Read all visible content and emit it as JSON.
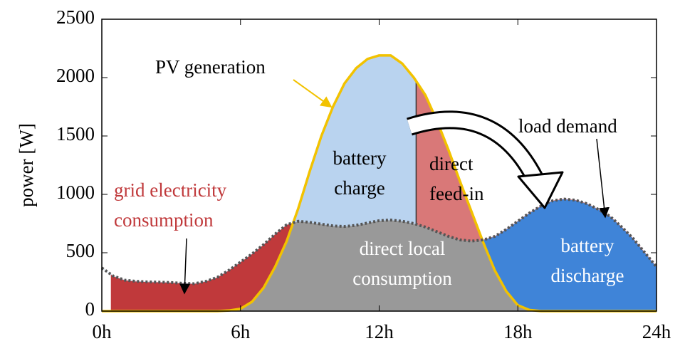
{
  "chart_data": {
    "type": "area",
    "ylabel": "power [W]",
    "x": [
      0,
      0.5,
      1,
      1.5,
      2,
      2.5,
      3,
      3.5,
      4,
      4.5,
      5,
      5.5,
      6,
      6.5,
      7,
      7.5,
      8,
      8.5,
      9,
      9.5,
      10,
      10.5,
      11,
      11.5,
      12,
      12.5,
      13,
      13.5,
      14,
      14.5,
      15,
      15.5,
      16,
      16.5,
      17,
      17.5,
      18,
      18.5,
      19,
      19.5,
      20,
      20.5,
      21,
      21.5,
      22,
      22.5,
      23,
      23.5,
      24
    ],
    "series": [
      {
        "name": "load demand",
        "color": "#555555",
        "style": "dotted",
        "values": [
          370,
          300,
          265,
          255,
          250,
          248,
          245,
          238,
          235,
          255,
          290,
          350,
          420,
          490,
          570,
          660,
          740,
          770,
          760,
          745,
          730,
          725,
          735,
          755,
          775,
          780,
          770,
          750,
          720,
          680,
          640,
          610,
          600,
          610,
          640,
          700,
          770,
          840,
          900,
          945,
          960,
          950,
          920,
          870,
          810,
          720,
          620,
          500,
          380
        ]
      },
      {
        "name": "PV generation",
        "color": "#f2c200",
        "style": "solid",
        "values": [
          0,
          0,
          0,
          0,
          0,
          0,
          0,
          0,
          0,
          0,
          0,
          5,
          20,
          80,
          200,
          380,
          600,
          880,
          1200,
          1500,
          1750,
          1950,
          2080,
          2160,
          2190,
          2190,
          2120,
          2000,
          1850,
          1630,
          1380,
          1110,
          850,
          590,
          350,
          170,
          50,
          10,
          0,
          0,
          0,
          0,
          0,
          0,
          0,
          0,
          0,
          0,
          0
        ]
      }
    ],
    "regions": [
      {
        "lines": [
          "direct local",
          "consumption"
        ],
        "kind": "self",
        "color": "#999999",
        "x": [
          0,
          24
        ]
      },
      {
        "lines": [
          "grid electricity",
          "consumption"
        ],
        "kind": "deficit",
        "color": "#c0393b",
        "x": [
          0.4,
          12
        ]
      },
      {
        "lines": [
          "battery",
          "discharge"
        ],
        "kind": "deficit",
        "color": "#3f84d8",
        "x": [
          12,
          24
        ]
      },
      {
        "lines": [
          "battery",
          "charge"
        ],
        "kind": "surplus",
        "color": "#b9d3ef",
        "x": [
          0,
          13.6
        ]
      },
      {
        "lines": [
          "direct",
          "feed-in"
        ],
        "kind": "surplus",
        "color": "#d97878",
        "x": [
          13.6,
          24
        ]
      }
    ],
    "xlim": [
      0,
      24
    ],
    "xticks": [
      {
        "value": 0,
        "label": "0h"
      },
      {
        "value": 6,
        "label": "6h"
      },
      {
        "value": 12,
        "label": "12h"
      },
      {
        "value": 18,
        "label": "18h"
      },
      {
        "value": 24,
        "label": "24h"
      }
    ],
    "ylim": [
      0,
      2500
    ],
    "yticks": [
      0,
      500,
      1000,
      1500,
      2000,
      2500
    ],
    "grid": false
  }
}
